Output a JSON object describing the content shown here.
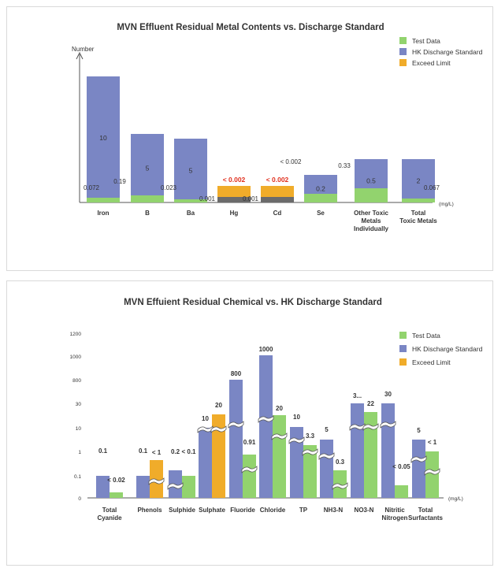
{
  "charts": [
    {
      "type": "bar",
      "title": "MVN Effluent Residual Metal Contents vs. Discharge Standard",
      "ylabel": "Number",
      "unit": "(mg/L)",
      "legend": [
        "Test Data",
        "HK Discharge Standard",
        "Exceed Limit"
      ],
      "legend_placement": "top-right",
      "colors": {
        "test": "#92d36e",
        "standard": "#7a86c4",
        "exceed": "#f0ac2a",
        "dark": "#6b6b6b",
        "alert": "#e0301e"
      },
      "categories": [
        "Iron",
        "B",
        "Ba",
        "Hg",
        "Cd",
        "Se",
        "Other Toxic Metals Individually",
        "Total Toxic Metals"
      ],
      "standard_labels": [
        "10",
        "5",
        "5",
        "",
        "",
        "0.2",
        "0.5",
        "2"
      ],
      "test_labels": [
        "0.072",
        "0.19",
        "0.023",
        "0.001",
        "0.001",
        "< 0.002",
        "0.33",
        "0.067"
      ],
      "exceed_labels": [
        "",
        "",
        "",
        "< 0.002",
        "< 0.002",
        "",
        "",
        ""
      ]
    },
    {
      "type": "bar",
      "title": "MVN Effuient Residual Chemical vs.  HK Discharge Standard",
      "y_ticks": [
        "0",
        "0.1",
        "1",
        "10",
        "30",
        "800",
        "1000",
        "1200"
      ],
      "unit": "(mg/L)",
      "legend": [
        "Test Data",
        "HK Discharge Standard",
        "Exceed Limit"
      ],
      "legend_placement": "top-right",
      "colors": {
        "test": "#92d36e",
        "standard": "#7a86c4",
        "exceed": "#f0ac2a"
      },
      "categories": [
        "Total Cyanide",
        "Phenols",
        "Sulphide",
        "Sulphate",
        "Fluoride",
        "Chloride",
        "TP",
        "NH3-N",
        "NO3-N",
        "Nitritic Nitrogen",
        "Total Surfactants"
      ],
      "standard_labels": [
        "0.1",
        "0.1",
        "0.2",
        "10",
        "800",
        "1000",
        "10",
        "5",
        "3...",
        "30",
        "5"
      ],
      "test_labels": [
        "< 0.02",
        "< 1",
        "< 0.1",
        "20",
        "0.91",
        "20",
        "3.3",
        "0.3",
        "22",
        "< 0.05",
        "< 1"
      ]
    }
  ],
  "chart_data": [
    {
      "type": "bar",
      "title": "MVN Effluent Residual Metal Contents vs. Discharge Standard",
      "ylabel": "Number",
      "xlabel": "",
      "unit": "mg/L",
      "categories": [
        "Iron",
        "B",
        "Ba",
        "Hg",
        "Cd",
        "Se",
        "Other Toxic Metals Individually",
        "Total Toxic Metals"
      ],
      "series": [
        {
          "name": "Test Data",
          "values": [
            0.072,
            0.19,
            0.023,
            0.001,
            0.001,
            0.002,
            0.33,
            0.067
          ]
        },
        {
          "name": "HK Discharge Standard",
          "values": [
            10,
            5,
            5,
            null,
            null,
            0.2,
            0.5,
            2
          ]
        },
        {
          "name": "Exceed Limit",
          "values": [
            null,
            null,
            null,
            0.002,
            0.002,
            null,
            null,
            null
          ]
        }
      ],
      "legend": "top-right",
      "grid": false
    },
    {
      "type": "bar",
      "title": "MVN Effuient Residual Chemical vs.  HK Discharge Standard",
      "xlabel": "",
      "ylabel": "",
      "unit": "mg/L",
      "y_scale": "broken",
      "y_ticks": [
        0,
        0.1,
        1,
        10,
        30,
        800,
        1000,
        1200
      ],
      "categories": [
        "Total Cyanide",
        "Phenols",
        "Sulphide",
        "Sulphate",
        "Fluoride",
        "Chloride",
        "TP",
        "NH3-N",
        "NO3-N",
        "Nitritic Nitrogen",
        "Total Surfactants"
      ],
      "series": [
        {
          "name": "Test Data",
          "values": [
            0.02,
            null,
            0.1,
            null,
            0.91,
            20,
            3.3,
            0.3,
            22,
            0.05,
            1
          ]
        },
        {
          "name": "HK Discharge Standard",
          "values": [
            0.1,
            0.1,
            0.2,
            10,
            800,
            1000,
            10,
            5,
            null,
            30,
            5
          ]
        },
        {
          "name": "Exceed Limit",
          "values": [
            null,
            1,
            null,
            20,
            null,
            null,
            null,
            null,
            null,
            null,
            null
          ]
        }
      ],
      "legend": "top-right",
      "grid": false
    }
  ]
}
